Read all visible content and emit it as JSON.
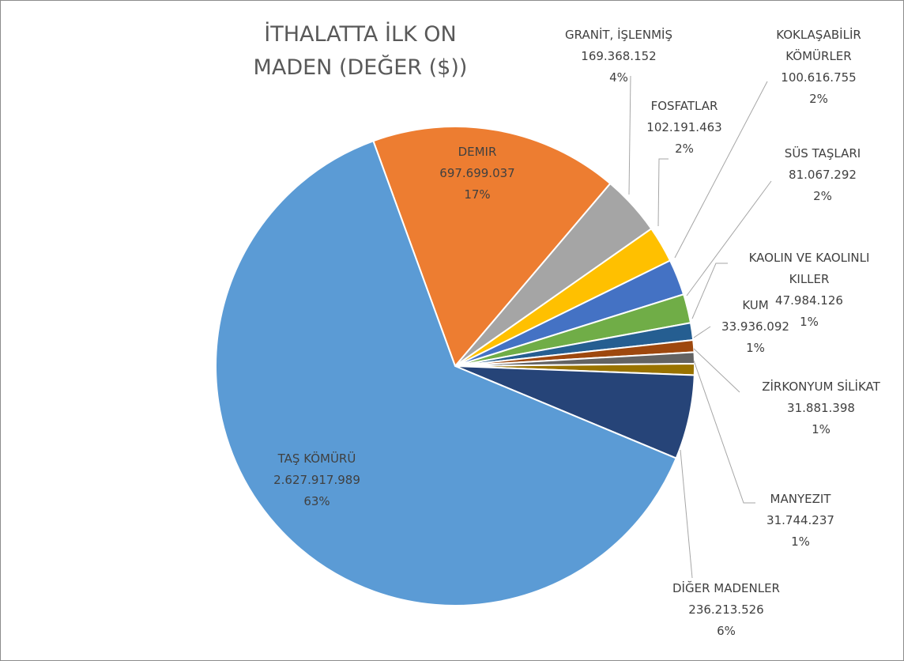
{
  "chart_data": {
    "type": "pie",
    "title": "İTHALATTA İLK ON MADEN (DEĞER ($))",
    "categories": [
      "DEMIR",
      "GRANİT, İŞLENMİŞ",
      "FOSFATLAR",
      "KOKLAŞABİLİR KÖMÜRLER",
      "SÜS TAŞLARI",
      "KAOLIN VE KAOLINLI KILLER",
      "KUM",
      "ZİRKONYUM SİLİKAT",
      "MANYEZIT",
      "DİĞER MADENLER",
      "TAŞ KÖMÜRÜ"
    ],
    "values": [
      697699037,
      169368152,
      102191463,
      100616755,
      81067292,
      47984126,
      33936092,
      31881398,
      31744237,
      236213526,
      2627917989
    ],
    "value_labels": [
      "697.699.037",
      "169.368.152",
      "102.191.463",
      "100.616.755",
      "81.067.292",
      "47.984.126",
      "33.936.092",
      "31.881.398",
      "31.744.237",
      "236.213.526",
      "2.627.917.989"
    ],
    "percent_labels": [
      "17%",
      "4%",
      "2%",
      "2%",
      "2%",
      "1%",
      "1%",
      "1%",
      "1%",
      "6%",
      "63%"
    ],
    "colors": [
      "#ed7d31",
      "#a5a5a5",
      "#ffc000",
      "#4472c4",
      "#70ad47",
      "#255e91",
      "#9e480e",
      "#636363",
      "#997300",
      "#264478",
      "#5b9bd5"
    ]
  }
}
